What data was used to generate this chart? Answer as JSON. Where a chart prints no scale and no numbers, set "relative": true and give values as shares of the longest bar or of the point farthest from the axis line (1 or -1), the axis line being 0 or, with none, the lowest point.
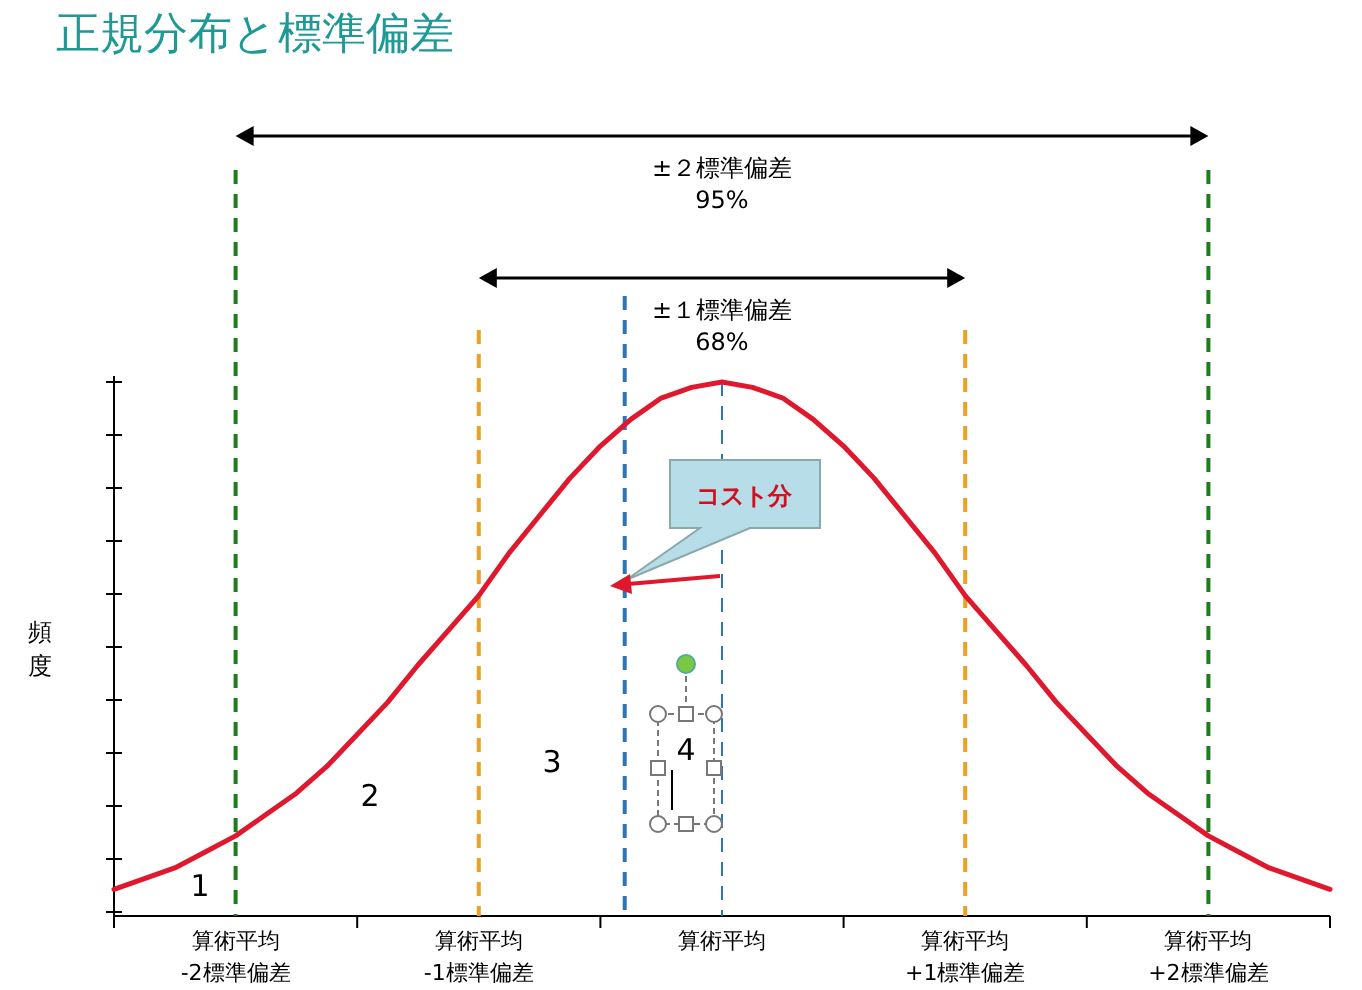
{
  "chart_data": {
    "type": "line",
    "title": "正規分布と標準偏差",
    "ylabel": "頻度",
    "relative": true,
    "legend": false,
    "grid": false,
    "marker": "none",
    "line_style": "solid",
    "x": [
      -2.5,
      -2.375,
      -2.25,
      -2.125,
      -2,
      -1.875,
      -1.75,
      -1.625,
      -1.5,
      -1.375,
      -1.25,
      -1.125,
      -1,
      -0.875,
      -0.75,
      -0.625,
      -0.5,
      -0.375,
      -0.25,
      -0.125,
      0,
      0.125,
      0.25,
      0.375,
      0.5,
      0.625,
      0.75,
      0.875,
      1,
      1.125,
      1.25,
      1.375,
      1.5,
      1.625,
      1.75,
      1.875,
      2,
      2.125,
      2.25,
      2.375,
      2.5
    ],
    "series": [
      {
        "color": "#e0182d",
        "values": [
          0.05,
          0.07,
          0.09,
          0.12,
          0.15,
          0.19,
          0.23,
          0.28,
          0.34,
          0.4,
          0.47,
          0.535,
          0.6,
          0.68,
          0.75,
          0.82,
          0.88,
          0.93,
          0.97,
          0.99,
          1,
          0.99,
          0.97,
          0.93,
          0.88,
          0.82,
          0.75,
          0.68,
          0.6,
          0.535,
          0.47,
          0.4,
          0.34,
          0.28,
          0.23,
          0.19,
          0.15,
          0.12,
          0.09,
          0.07,
          0.05
        ]
      }
    ],
    "xlim": [
      -2.5,
      2.5
    ],
    "xticks": [
      {
        "value": -2.5,
        "label": null
      },
      {
        "value": -2,
        "label": "算術平均\n-2標準偏差"
      },
      {
        "value": -1.5,
        "label": null
      },
      {
        "value": -1,
        "label": "算術平均\n-1標準偏差"
      },
      {
        "value": -0.5,
        "label": null
      },
      {
        "value": 0,
        "label": "算術平均"
      },
      {
        "value": 0.5,
        "label": null
      },
      {
        "value": 1,
        "label": "算術平均\n+1標準偏差"
      },
      {
        "value": 1.5,
        "label": null
      },
      {
        "value": 2,
        "label": "算術平均\n+2標準偏差"
      },
      {
        "value": 2.5,
        "label": null
      }
    ],
    "ref_lines": [
      {
        "axis": "x",
        "value": -2,
        "color": "#1e7b1e",
        "line_style": "dashed"
      },
      {
        "axis": "x",
        "value": 2,
        "color": "#1e7b1e",
        "line_style": "dashed"
      },
      {
        "axis": "x",
        "value": -1,
        "color": "#f0a020",
        "line_style": "dashed"
      },
      {
        "axis": "x",
        "value": 1,
        "color": "#f0a020",
        "line_style": "dashed"
      },
      {
        "axis": "x",
        "value": -0.4,
        "color": "#2e75b6",
        "line_style": "dashed"
      },
      {
        "axis": "x",
        "value": 0,
        "color": "#2e75b6",
        "line_style": "dashed"
      }
    ],
    "annotations": [
      "±２標準偏差",
      "95%",
      "±１標準偏差",
      "68%",
      "コスト分",
      "1",
      "2",
      "3",
      "4"
    ]
  }
}
